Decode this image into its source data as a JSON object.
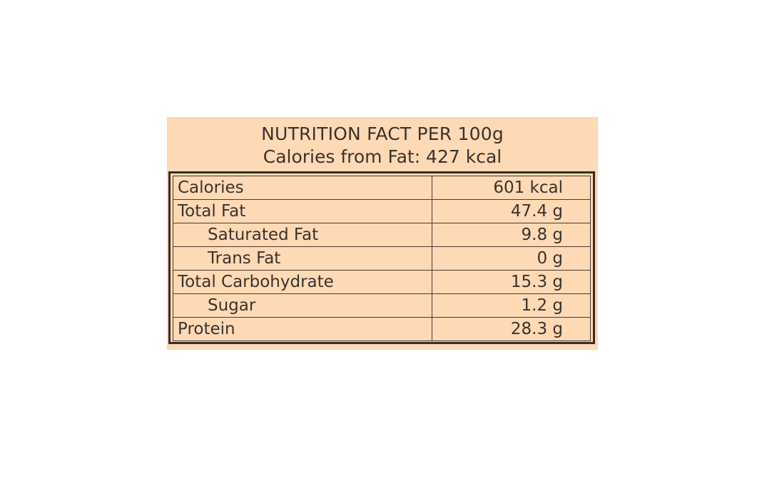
{
  "header": {
    "title": "NUTRITION FACT PER 100g",
    "subtitle": "Calories from Fat: 427 kcal"
  },
  "rows": [
    {
      "label": "Calories",
      "value": "601 kcal"
    },
    {
      "label": "Total Fat",
      "value": "47.4 g"
    },
    {
      "label": "Saturated Fat",
      "value": "9.8 g"
    },
    {
      "label": "Trans Fat",
      "value": "0 g"
    },
    {
      "label": "Total Carbohydrate",
      "value": "15.3 g"
    },
    {
      "label": "Sugar",
      "value": "1.2 g"
    },
    {
      "label": "Protein",
      "value": "28.3 g"
    }
  ],
  "colors": {
    "panel_background": "#fdd9b5",
    "border": "#3a2c24",
    "text": "#3a332e"
  }
}
